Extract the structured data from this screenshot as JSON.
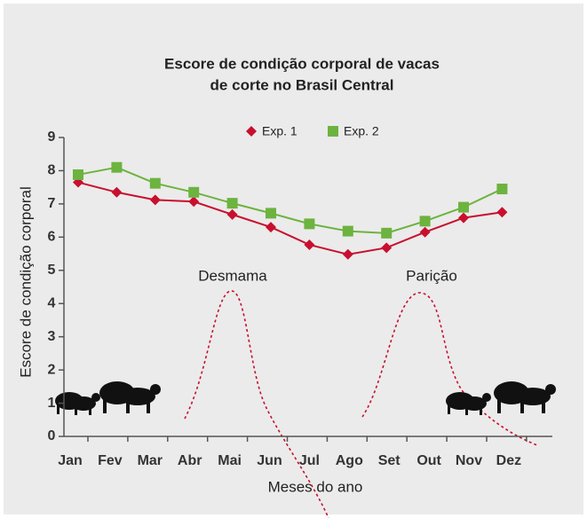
{
  "chart_data": {
    "type": "line",
    "title": [
      "Escore de condição corporal de vacas",
      "de corte no Brasil Central"
    ],
    "x_label": "Meses do ano",
    "y_label": "Escore de condição corporal",
    "categories": [
      "Jan",
      "Fev",
      "Mar",
      "Abr",
      "Mai",
      "Jun",
      "Jul",
      "Ago",
      "Set",
      "Out",
      "Nov",
      "Dez"
    ],
    "series": [
      {
        "name": "Exp. 1",
        "color": "#c8102e",
        "marker": "diamond",
        "values": [
          7.65,
          7.35,
          7.12,
          7.07,
          6.68,
          6.3,
          5.77,
          5.48,
          5.68,
          6.15,
          6.58,
          6.75
        ]
      },
      {
        "name": "Exp. 2",
        "color": "#6db33f",
        "marker": "square",
        "values": [
          7.88,
          8.1,
          7.62,
          7.35,
          7.02,
          6.72,
          6.4,
          6.18,
          6.12,
          6.48,
          6.9,
          7.45
        ]
      }
    ],
    "annotations": [
      "Desmama",
      "Parição"
    ],
    "ylim": [
      0,
      9
    ],
    "yticks": [
      0,
      1,
      2,
      3,
      4,
      5,
      6,
      7,
      8,
      9
    ],
    "legend": "top"
  }
}
